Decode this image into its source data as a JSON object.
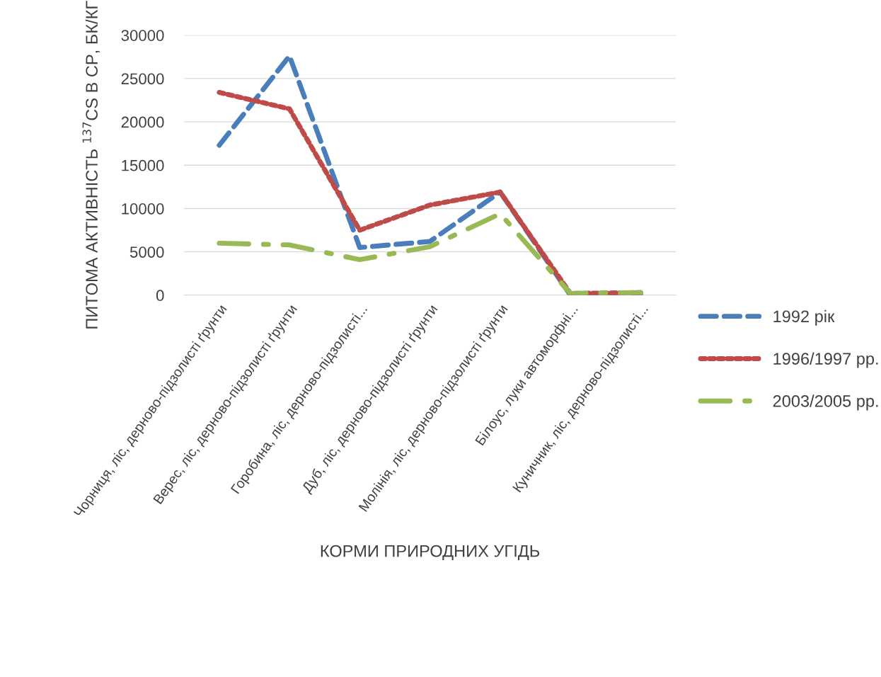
{
  "chart_data": {
    "type": "line",
    "xlabel": "КОРМИ ПРИРОДНИХ УГІДЬ",
    "ylabel": "ПИТОМА АКТИВНІСТЬ $^{137}$CS В СР, БК/КГ",
    "categories": [
      "Чорниця, ліс, дерново-підзолисті ґрунти",
      "Верес, ліс, дерново-підзолисті ґрунти",
      "Горобина, ліс, дерново-підзолисті...",
      "Дуб, ліс, дерново-підзолисті ґрунти",
      "Молінія, ліс, дерново-підзолисті ґрунти",
      "Білоус, луки автоморфні...",
      "Куничник, ліс, дерново-підзолисті..."
    ],
    "series": [
      {
        "name": "1992 рік",
        "color": "#4a7ebb",
        "line_style": "dashed",
        "values": [
          17300,
          27600,
          5500,
          6200,
          11900,
          0,
          100
        ]
      },
      {
        "name": "1996/1997 рр.",
        "color": "#be4b48",
        "line_style": "dotted",
        "values": [
          23400,
          21500,
          7500,
          10400,
          11900,
          200,
          300
        ]
      },
      {
        "name": "2003/2005 рр.",
        "color": "#98b954",
        "line_style": "dashdot",
        "values": [
          6000,
          5800,
          4100,
          5600,
          9400,
          200,
          300
        ]
      }
    ],
    "ylim": [
      0,
      30000
    ],
    "yticks": [
      0,
      5000,
      10000,
      15000,
      20000,
      25000,
      30000
    ],
    "grid": "y",
    "legend": "right",
    "marker": "none"
  }
}
